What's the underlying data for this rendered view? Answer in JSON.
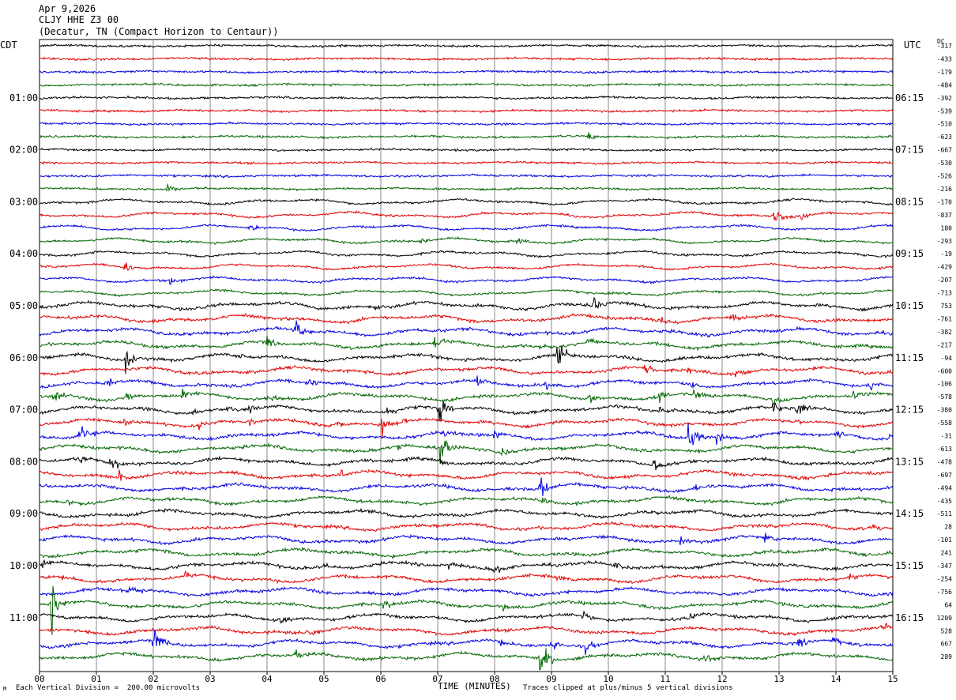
{
  "header": {
    "date": "Apr 9,2026",
    "station": "CLJY HHE Z3 00",
    "location": "(Decatur, TN (Compact Horizon to Centaur))"
  },
  "left_axis_label": "CDT",
  "right_axis_label": "UTC",
  "dc_label": "DC",
  "footer": {
    "scale": "Each Vertical Division =  200.00 microvolts",
    "clip": "Traces clipped at plus/minus 5 vertical divisions",
    "corner_mark": "M"
  },
  "colors": {
    "black": "#000000",
    "red": "#e00000",
    "blue": "#0000e0",
    "green": "#006400",
    "grid": "#888888"
  },
  "chart_data": {
    "type": "line",
    "title": "",
    "xlabel": "TIME (MINUTES)",
    "ylabel": "",
    "x_ticks": [
      "00",
      "01",
      "02",
      "03",
      "04",
      "05",
      "06",
      "07",
      "08",
      "09",
      "10",
      "11",
      "12",
      "13",
      "14",
      "15"
    ],
    "xlim": [
      0,
      15
    ],
    "grid": true,
    "left_time_labels": [
      "01:00",
      "02:00",
      "03:00",
      "04:00",
      "05:00",
      "06:00",
      "07:00",
      "08:00",
      "09:00",
      "10:00",
      "11:00"
    ],
    "right_time_labels": [
      "06:15",
      "07:15",
      "08:15",
      "09:15",
      "10:15",
      "11:15",
      "12:15",
      "13:15",
      "14:15",
      "15:15",
      "16:15"
    ],
    "trace_colors_cycle": [
      "black",
      "red",
      "blue",
      "green"
    ],
    "dc_offsets": [
      -317,
      -433,
      -179,
      -484,
      -392,
      -539,
      -510,
      -623,
      -667,
      -530,
      -526,
      -216,
      -170,
      -837,
      180,
      -293,
      -19,
      -429,
      -207,
      -713,
      753,
      -761,
      -382,
      -217,
      -94,
      -600,
      -106,
      -578,
      -380,
      -558,
      -31,
      -613,
      -478,
      -697,
      -494,
      -435,
      -511,
      28,
      -101,
      241,
      -347,
      -254,
      -756,
      64,
      1209,
      528,
      667,
      289
    ],
    "events": [
      {
        "trace": 7,
        "minute": 9.65,
        "amp": 0.6
      },
      {
        "trace": 11,
        "minute": 2.25,
        "amp": 0.5
      },
      {
        "trace": 14,
        "minute": 3.7,
        "amp": 0.4
      },
      {
        "trace": 13,
        "minute": 12.9,
        "amp": 0.9
      },
      {
        "trace": 13,
        "minute": 13.4,
        "amp": 0.4
      },
      {
        "trace": 15,
        "minute": 6.7,
        "amp": 0.4
      },
      {
        "trace": 15,
        "minute": 8.4,
        "amp": 0.4
      },
      {
        "trace": 17,
        "minute": 1.5,
        "amp": 0.5
      },
      {
        "trace": 18,
        "minute": 2.3,
        "amp": 0.7
      },
      {
        "trace": 20,
        "minute": 5.9,
        "amp": 0.4
      },
      {
        "trace": 20,
        "minute": 9.7,
        "amp": 1.2
      },
      {
        "trace": 21,
        "minute": 10.9,
        "amp": 0.6
      },
      {
        "trace": 21,
        "minute": 12.15,
        "amp": 0.6
      },
      {
        "trace": 22,
        "minute": 4.5,
        "amp": 1.0
      },
      {
        "trace": 23,
        "minute": 4.0,
        "amp": 0.5
      },
      {
        "trace": 23,
        "minute": 6.95,
        "amp": 1.0
      },
      {
        "trace": 23,
        "minute": 8.8,
        "amp": 0.4
      },
      {
        "trace": 23,
        "minute": 9.6,
        "amp": 0.5
      },
      {
        "trace": 24,
        "minute": 1.5,
        "amp": 1.2
      },
      {
        "trace": 24,
        "minute": 3.5,
        "amp": 0.4
      },
      {
        "trace": 24,
        "minute": 9.1,
        "amp": 1.8
      },
      {
        "trace": 25,
        "minute": 10.65,
        "amp": 0.8
      },
      {
        "trace": 25,
        "minute": 11.4,
        "amp": 0.4
      },
      {
        "trace": 25,
        "minute": 12.25,
        "amp": 0.4
      },
      {
        "trace": 26,
        "minute": 1.2,
        "amp": 0.5
      },
      {
        "trace": 26,
        "minute": 4.7,
        "amp": 0.6
      },
      {
        "trace": 26,
        "minute": 7.7,
        "amp": 0.6
      },
      {
        "trace": 26,
        "minute": 8.9,
        "amp": 0.6
      },
      {
        "trace": 26,
        "minute": 11.45,
        "amp": 0.6
      },
      {
        "trace": 26,
        "minute": 14.6,
        "amp": 0.6
      },
      {
        "trace": 27,
        "minute": 0.25,
        "amp": 0.8
      },
      {
        "trace": 27,
        "minute": 1.5,
        "amp": 0.7
      },
      {
        "trace": 27,
        "minute": 2.5,
        "amp": 0.6
      },
      {
        "trace": 27,
        "minute": 4.1,
        "amp": 0.5
      },
      {
        "trace": 27,
        "minute": 9.65,
        "amp": 0.6
      },
      {
        "trace": 27,
        "minute": 10.9,
        "amp": 0.6
      },
      {
        "trace": 27,
        "minute": 11.5,
        "amp": 0.6
      },
      {
        "trace": 27,
        "minute": 12.9,
        "amp": 0.6
      },
      {
        "trace": 27,
        "minute": 14.3,
        "amp": 0.5
      },
      {
        "trace": 28,
        "minute": 2.7,
        "amp": 0.5
      },
      {
        "trace": 28,
        "minute": 3.3,
        "amp": 0.6
      },
      {
        "trace": 28,
        "minute": 3.7,
        "amp": 0.7
      },
      {
        "trace": 28,
        "minute": 6.1,
        "amp": 0.7
      },
      {
        "trace": 28,
        "minute": 7.0,
        "amp": 1.5
      },
      {
        "trace": 28,
        "minute": 10.9,
        "amp": 0.6
      },
      {
        "trace": 28,
        "minute": 12.9,
        "amp": 0.7
      },
      {
        "trace": 28,
        "minute": 13.3,
        "amp": 0.8
      },
      {
        "trace": 29,
        "minute": 1.5,
        "amp": 0.6
      },
      {
        "trace": 29,
        "minute": 2.8,
        "amp": 0.5
      },
      {
        "trace": 29,
        "minute": 3.65,
        "amp": 0.5
      },
      {
        "trace": 29,
        "minute": 5.2,
        "amp": 0.4
      },
      {
        "trace": 29,
        "minute": 6.0,
        "amp": 1.3
      },
      {
        "trace": 29,
        "minute": 6.4,
        "amp": 0.4
      },
      {
        "trace": 29,
        "minute": 13.3,
        "amp": 0.4
      },
      {
        "trace": 30,
        "minute": 0.7,
        "amp": 1.5
      },
      {
        "trace": 30,
        "minute": 7.1,
        "amp": 0.7
      },
      {
        "trace": 30,
        "minute": 8.0,
        "amp": 0.6
      },
      {
        "trace": 30,
        "minute": 11.4,
        "amp": 2.0
      },
      {
        "trace": 30,
        "minute": 11.9,
        "amp": 0.6
      },
      {
        "trace": 30,
        "minute": 14.0,
        "amp": 0.6
      },
      {
        "trace": 30,
        "minute": 14.95,
        "amp": 0.6
      },
      {
        "trace": 31,
        "minute": 6.3,
        "amp": 0.4
      },
      {
        "trace": 31,
        "minute": 7.05,
        "amp": 1.5
      },
      {
        "trace": 31,
        "minute": 8.1,
        "amp": 0.4
      },
      {
        "trace": 32,
        "minute": 0.7,
        "amp": 0.7
      },
      {
        "trace": 32,
        "minute": 1.25,
        "amp": 0.8
      },
      {
        "trace": 32,
        "minute": 7.05,
        "amp": 0.9
      },
      {
        "trace": 32,
        "minute": 10.8,
        "amp": 0.8
      },
      {
        "trace": 33,
        "minute": 1.4,
        "amp": 0.5
      },
      {
        "trace": 33,
        "minute": 5.3,
        "amp": 0.4
      },
      {
        "trace": 33,
        "minute": 13.35,
        "amp": 0.4
      },
      {
        "trace": 33,
        "minute": 14.55,
        "amp": 0.4
      },
      {
        "trace": 34,
        "minute": 8.8,
        "amp": 1.3
      },
      {
        "trace": 34,
        "minute": 11.5,
        "amp": 0.4
      },
      {
        "trace": 35,
        "minute": 0.5,
        "amp": 0.5
      },
      {
        "trace": 35,
        "minute": 8.85,
        "amp": 0.4
      },
      {
        "trace": 37,
        "minute": 14.65,
        "amp": 0.4
      },
      {
        "trace": 38,
        "minute": 11.25,
        "amp": 0.5
      },
      {
        "trace": 38,
        "minute": 12.75,
        "amp": 0.5
      },
      {
        "trace": 39,
        "minute": 14.9,
        "amp": 0.4
      },
      {
        "trace": 40,
        "minute": 0.05,
        "amp": 0.6
      },
      {
        "trace": 40,
        "minute": 5.0,
        "amp": 0.4
      },
      {
        "trace": 40,
        "minute": 7.2,
        "amp": 0.4
      },
      {
        "trace": 40,
        "minute": 8.0,
        "amp": 0.6
      },
      {
        "trace": 40,
        "minute": 10.1,
        "amp": 0.5
      },
      {
        "trace": 41,
        "minute": 0.4,
        "amp": 0.4
      },
      {
        "trace": 41,
        "minute": 2.55,
        "amp": 0.4
      },
      {
        "trace": 41,
        "minute": 9.1,
        "amp": 0.5
      },
      {
        "trace": 41,
        "minute": 14.25,
        "amp": 0.4
      },
      {
        "trace": 42,
        "minute": 1.6,
        "amp": 0.5
      },
      {
        "trace": 43,
        "minute": 0.2,
        "amp": 2.5
      },
      {
        "trace": 43,
        "minute": 6.05,
        "amp": 0.5
      },
      {
        "trace": 43,
        "minute": 8.15,
        "amp": 0.4
      },
      {
        "trace": 44,
        "minute": 4.2,
        "amp": 0.5
      },
      {
        "trace": 44,
        "minute": 9.55,
        "amp": 0.6
      },
      {
        "trace": 44,
        "minute": 11.4,
        "amp": 0.5
      },
      {
        "trace": 45,
        "minute": 4.7,
        "amp": 0.4
      },
      {
        "trace": 45,
        "minute": 14.85,
        "amp": 0.5
      },
      {
        "trace": 46,
        "minute": 2.0,
        "amp": 1.5
      },
      {
        "trace": 46,
        "minute": 8.1,
        "amp": 0.5
      },
      {
        "trace": 46,
        "minute": 9.0,
        "amp": 0.9
      },
      {
        "trace": 46,
        "minute": 9.6,
        "amp": 0.6
      },
      {
        "trace": 46,
        "minute": 13.35,
        "amp": 0.5
      },
      {
        "trace": 46,
        "minute": 13.95,
        "amp": 0.5
      },
      {
        "trace": 47,
        "minute": 4.5,
        "amp": 0.5
      },
      {
        "trace": 47,
        "minute": 8.8,
        "amp": 2.0
      },
      {
        "trace": 47,
        "minute": 11.7,
        "amp": 0.6
      }
    ]
  }
}
